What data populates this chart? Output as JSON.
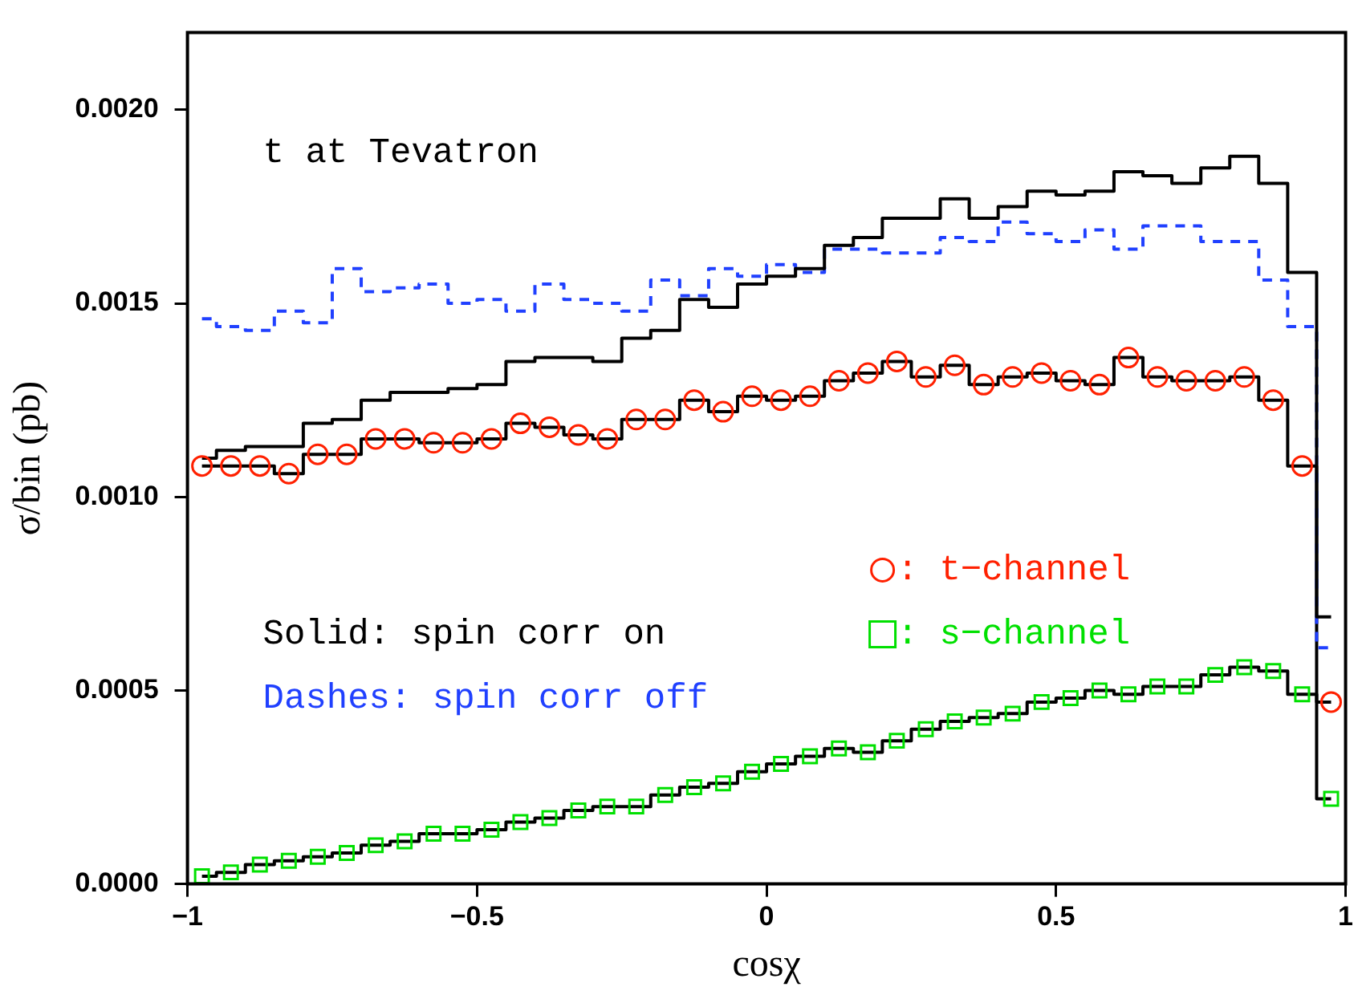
{
  "chart_data": {
    "type": "step",
    "title": "t at Tevatron",
    "xlabel": "cosχ",
    "ylabel": "σ/bin (pb)",
    "xlim": [
      -1,
      1
    ],
    "xticks": [
      {
        "value": -1,
        "label": "−1"
      },
      {
        "value": -0.5,
        "label": "−0.5"
      },
      0,
      0.5,
      1
    ],
    "ylim": [
      0,
      0.0022
    ],
    "yticks": [
      {
        "value": 0,
        "label": "0.0000"
      },
      {
        "value": 0.0005,
        "label": "0.0005"
      },
      {
        "value": 0.001,
        "label": "0.0010"
      },
      {
        "value": 0.0015,
        "label": "0.0015"
      },
      {
        "value": 0.002,
        "label": "0.0020"
      }
    ],
    "x": [
      -0.975,
      -0.925,
      -0.875,
      -0.825,
      -0.775,
      -0.725,
      -0.675,
      -0.625,
      -0.575,
      -0.525,
      -0.475,
      -0.425,
      -0.375,
      -0.325,
      -0.275,
      -0.225,
      -0.175,
      -0.125,
      -0.075,
      -0.025,
      0.025,
      0.075,
      0.125,
      0.175,
      0.225,
      0.275,
      0.325,
      0.375,
      0.425,
      0.475,
      0.525,
      0.575,
      0.625,
      0.675,
      0.725,
      0.775,
      0.825,
      0.875,
      0.925,
      0.975
    ],
    "grid": false,
    "legend": "right",
    "annotations": [
      "Solid: spin corr on",
      "Dashes: spin corr off"
    ],
    "series": [
      {
        "color": "#000000",
        "line_style": "solid",
        "values": [
          0.0011,
          0.00112,
          0.00113,
          0.00113,
          0.00119,
          0.0012,
          0.00125,
          0.00127,
          0.00127,
          0.00128,
          0.00129,
          0.00135,
          0.00136,
          0.00136,
          0.00135,
          0.00141,
          0.00143,
          0.00151,
          0.00149,
          0.00155,
          0.00157,
          0.00159,
          0.00165,
          0.00167,
          0.00172,
          0.00172,
          0.00177,
          0.00172,
          0.00175,
          0.00179,
          0.00178,
          0.00179,
          0.00184,
          0.00183,
          0.00181,
          0.00185,
          0.00188,
          0.00181,
          0.00158,
          0.00069
        ]
      },
      {
        "color": "#2040ff",
        "line_style": "dashed",
        "values": [
          0.00146,
          0.00144,
          0.00143,
          0.00148,
          0.00145,
          0.00159,
          0.00153,
          0.00154,
          0.00155,
          0.0015,
          0.00151,
          0.00148,
          0.00155,
          0.00151,
          0.0015,
          0.00148,
          0.00156,
          0.00152,
          0.00159,
          0.00157,
          0.0016,
          0.00158,
          0.00164,
          0.00164,
          0.00163,
          0.00163,
          0.00167,
          0.00166,
          0.00171,
          0.00168,
          0.00166,
          0.00169,
          0.00164,
          0.0017,
          0.0017,
          0.00166,
          0.00166,
          0.00156,
          0.00144,
          0.00061
        ]
      },
      {
        "color": "#000000",
        "line_style": "solid",
        "values": [
          0.00108,
          0.00108,
          0.00108,
          0.00106,
          0.00111,
          0.00111,
          0.00115,
          0.00115,
          0.00114,
          0.00114,
          0.00115,
          0.00119,
          0.00118,
          0.00116,
          0.00115,
          0.0012,
          0.0012,
          0.00125,
          0.00122,
          0.00126,
          0.00125,
          0.00126,
          0.0013,
          0.00132,
          0.00135,
          0.00131,
          0.00134,
          0.00129,
          0.00131,
          0.00132,
          0.0013,
          0.00129,
          0.00136,
          0.00131,
          0.0013,
          0.0013,
          0.00131,
          0.00125,
          0.00108,
          0.00047
        ]
      },
      {
        "color": "#000000",
        "line_style": "solid",
        "values": [
          2e-05,
          3e-05,
          5e-05,
          6e-05,
          7e-05,
          8e-05,
          0.0001,
          0.00011,
          0.00013,
          0.00013,
          0.00014,
          0.00016,
          0.00017,
          0.00019,
          0.0002,
          0.0002,
          0.00023,
          0.00025,
          0.00026,
          0.00029,
          0.00031,
          0.00033,
          0.00035,
          0.00034,
          0.00037,
          0.0004,
          0.00042,
          0.00043,
          0.00044,
          0.00047,
          0.00048,
          0.0005,
          0.00049,
          0.00051,
          0.00051,
          0.00054,
          0.00056,
          0.00055,
          0.00049,
          0.00022
        ]
      },
      {
        "name": ": t−channel",
        "type": "scatter",
        "marker": "circle",
        "color": "#ff2000",
        "values": [
          0.00108,
          0.00108,
          0.00108,
          0.00106,
          0.00111,
          0.00111,
          0.00115,
          0.00115,
          0.00114,
          0.00114,
          0.00115,
          0.00119,
          0.00118,
          0.00116,
          0.00115,
          0.0012,
          0.0012,
          0.00125,
          0.00122,
          0.00126,
          0.00125,
          0.00126,
          0.0013,
          0.00132,
          0.00135,
          0.00131,
          0.00134,
          0.00129,
          0.00131,
          0.00132,
          0.0013,
          0.00129,
          0.00136,
          0.00131,
          0.0013,
          0.0013,
          0.00131,
          0.00125,
          0.00108,
          0.00047
        ]
      },
      {
        "name": ": s−channel",
        "type": "scatter",
        "marker": "square",
        "color": "#00e000",
        "values": [
          2e-05,
          3e-05,
          5e-05,
          6e-05,
          7e-05,
          8e-05,
          0.0001,
          0.00011,
          0.00013,
          0.00013,
          0.00014,
          0.00016,
          0.00017,
          0.00019,
          0.0002,
          0.0002,
          0.00023,
          0.00025,
          0.00026,
          0.00029,
          0.00031,
          0.00033,
          0.00035,
          0.00034,
          0.00037,
          0.0004,
          0.00042,
          0.00043,
          0.00044,
          0.00047,
          0.00048,
          0.0005,
          0.00049,
          0.00051,
          0.00051,
          0.00054,
          0.00056,
          0.00055,
          0.00049,
          0.00022
        ]
      }
    ]
  }
}
